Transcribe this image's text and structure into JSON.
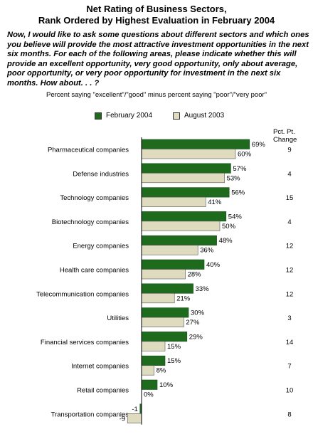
{
  "title_line1": "Net Rating of Business Sectors,",
  "title_line2": "Rank Ordered by Highest Evaluation in February 2004",
  "question": "Now, I would like to ask some questions about different sectors and which ones you believe will provide the most attractive investment opportunities in the next six months. For each of the following areas, please indicate whether this will provide an excellent opportunity, very good opportunity, only about average, poor opportunity, or very poor opportunity for investment in the next six months. How about. . . ?",
  "subtitle": "Percent saying \"excellent\"/\"good\" minus percent saying \"poor\"/\"very poor\"",
  "change_header": "Pct. Pt. Change",
  "colors": {
    "feb": "#1e6b1e",
    "aug": "#dedbbf"
  },
  "chart_data": {
    "type": "bar",
    "orientation": "horizontal",
    "categories": [
      "Pharmaceutical companies",
      "Defense industries",
      "Technology companies",
      "Biotechnology companies",
      "Energy companies",
      "Health care companies",
      "Telecommunication companies",
      "Utilities",
      "Financial services companies",
      "Internet companies",
      "Retail companies",
      "Transportation companies"
    ],
    "series": [
      {
        "name": "February 2004",
        "values": [
          69,
          57,
          56,
          54,
          48,
          40,
          33,
          30,
          29,
          15,
          10,
          -1
        ]
      },
      {
        "name": "August 2003",
        "values": [
          60,
          53,
          41,
          50,
          36,
          28,
          21,
          27,
          15,
          8,
          0,
          -9
        ]
      }
    ],
    "value_labels": {
      "February 2004": [
        "69%",
        "57%",
        "56%",
        "54%",
        "48%",
        "40%",
        "33%",
        "30%",
        "29%",
        "15%",
        "10%",
        "-1"
      ],
      "August 2003": [
        "60%",
        "53%",
        "41%",
        "50%",
        "36%",
        "28%",
        "21%",
        "27%",
        "15%",
        "8%",
        "0%",
        "-9"
      ]
    },
    "pct_pt_change": [
      9,
      4,
      15,
      4,
      12,
      12,
      12,
      3,
      14,
      7,
      10,
      8
    ],
    "xlim": [
      -10,
      70
    ],
    "legend_position": "top"
  }
}
